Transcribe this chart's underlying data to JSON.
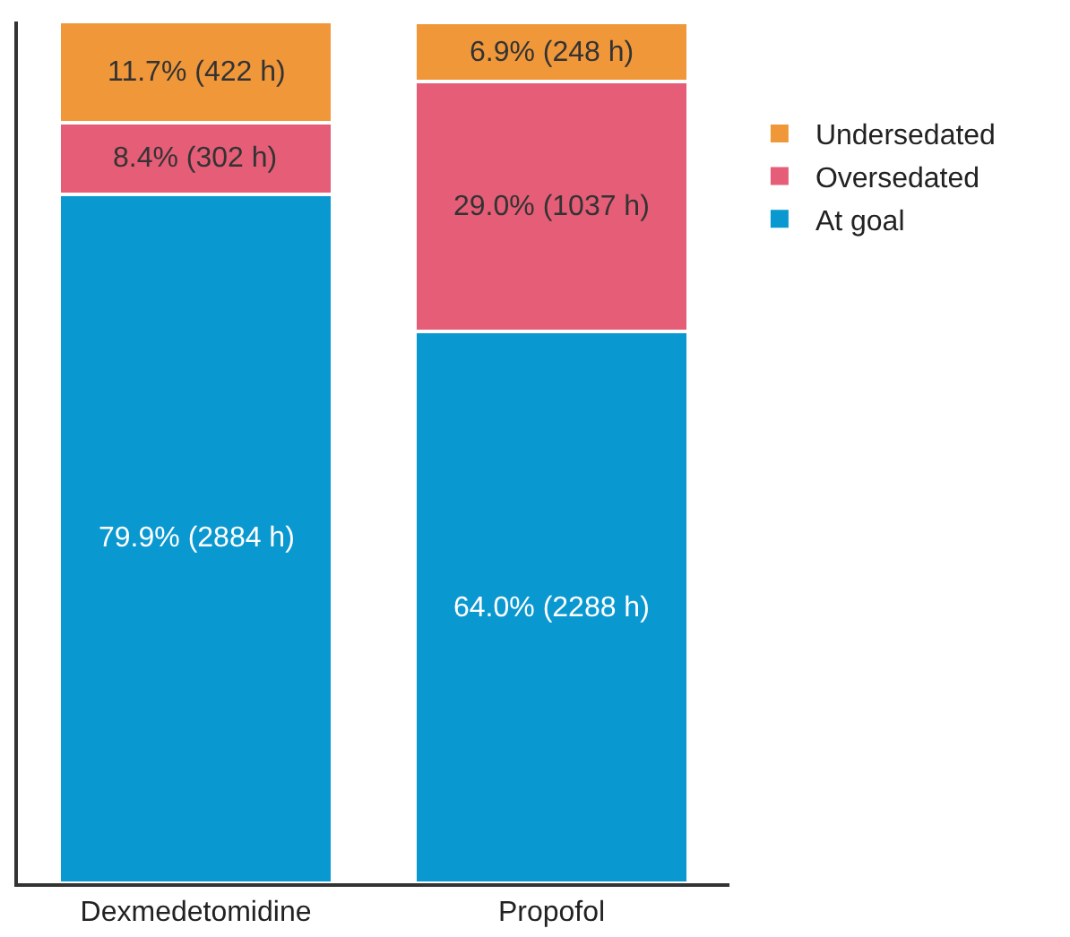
{
  "chart_data": {
    "type": "bar",
    "stacked": true,
    "categories": [
      "Dexmedetomidine",
      "Propofol"
    ],
    "series": [
      {
        "name": "At goal",
        "color": "#0a98d0",
        "values": [
          79.9,
          64.0
        ],
        "value_labels": [
          "79.9% (2884 h)",
          "64.0% (2288 h)"
        ]
      },
      {
        "name": "Oversedated",
        "color": "#e55d77",
        "values": [
          8.4,
          29.0
        ],
        "value_labels": [
          "8.4% (302 h)",
          "29.0% (1037 h)"
        ]
      },
      {
        "name": "Undersedated",
        "color": "#f0973a",
        "values": [
          11.7,
          6.9
        ],
        "value_labels": [
          "11.7% (422 h)",
          "6.9% (248 h)"
        ]
      }
    ],
    "ylim": [
      0,
      100
    ],
    "tick_labels": "x",
    "legend": "right"
  }
}
